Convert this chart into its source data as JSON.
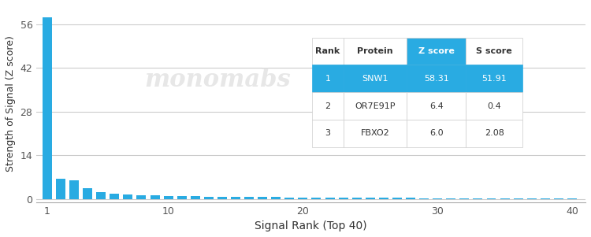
{
  "title": "",
  "xlabel": "Signal Rank (Top 40)",
  "ylabel": "Strength of Signal (Z score)",
  "xlim": [
    0,
    41
  ],
  "ylim": [
    -1,
    60
  ],
  "yticks": [
    0,
    14,
    28,
    42,
    56
  ],
  "xticks": [
    1,
    10,
    20,
    30,
    40
  ],
  "bar_color": "#29ABE2",
  "bar_values": [
    58.31,
    6.4,
    6.0,
    3.5,
    2.2,
    1.8,
    1.5,
    1.3,
    1.1,
    1.0,
    0.9,
    0.85,
    0.8,
    0.75,
    0.7,
    0.65,
    0.6,
    0.55,
    0.5,
    0.48,
    0.45,
    0.42,
    0.4,
    0.38,
    0.36,
    0.34,
    0.32,
    0.3,
    0.28,
    0.27,
    0.26,
    0.25,
    0.24,
    0.23,
    0.22,
    0.21,
    0.2,
    0.19,
    0.18,
    0.17
  ],
  "table_header_bg": "#29ABE2",
  "table_header_color": "#ffffff",
  "table_row1_bg": "#29ABE2",
  "table_row1_color": "#ffffff",
  "table_row_bg": "#ffffff",
  "table_row_color": "#333333",
  "table_headers": [
    "Rank",
    "Protein",
    "Z score",
    "S score"
  ],
  "table_data": [
    [
      "1",
      "SNW1",
      "58.31",
      "51.91"
    ],
    [
      "2",
      "OR7E91P",
      "6.4",
      "0.4"
    ],
    [
      "3",
      "FBXO2",
      "6.0",
      "2.08"
    ]
  ],
  "watermark_text": "monomabs",
  "background_color": "#ffffff",
  "grid_color": "#cccccc"
}
